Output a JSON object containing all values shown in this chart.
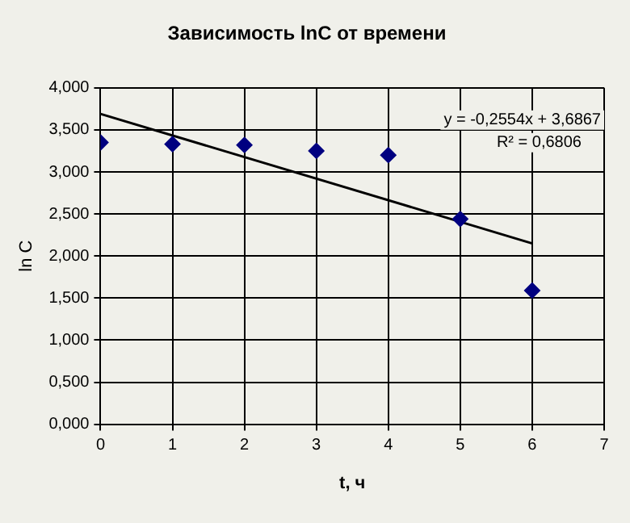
{
  "chart_data": {
    "type": "scatter",
    "title": "Зависимость lnC от времени",
    "xlabel": "t, ч",
    "ylabel": "ln C",
    "x": [
      0,
      1,
      2,
      3,
      4,
      5,
      6
    ],
    "series": [
      {
        "type": "scatter",
        "color": "#000080",
        "values": [
          3.35,
          3.33,
          3.32,
          3.25,
          3.2,
          2.44,
          1.59
        ],
        "marker": "diamond"
      },
      {
        "type": "line",
        "color": "#000000",
        "x": [
          0,
          6
        ],
        "values": [
          3.69,
          2.15
        ],
        "marker": "none"
      }
    ],
    "annotations": [
      "y = -0,2554x + 3,6867",
      "R² = 0,6806"
    ],
    "xlim": [
      0,
      7
    ],
    "xticks": [
      0,
      1,
      2,
      3,
      4,
      5,
      6,
      7
    ],
    "ylim": [
      0,
      4
    ],
    "yticks": [
      {
        "value": 0,
        "label": "0,000"
      },
      {
        "value": 0.5,
        "label": "0,500"
      },
      {
        "value": 1,
        "label": "1,000"
      },
      {
        "value": 1.5,
        "label": "1,500"
      },
      {
        "value": 2,
        "label": "2,000"
      },
      {
        "value": 2.5,
        "label": "2,500"
      },
      {
        "value": 3,
        "label": "3,000"
      },
      {
        "value": 3.5,
        "label": "3,500"
      },
      {
        "value": 4,
        "label": "4,000"
      }
    ],
    "grid": true,
    "legend": false
  }
}
